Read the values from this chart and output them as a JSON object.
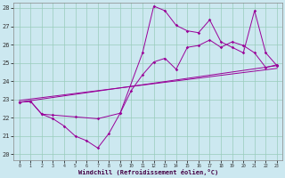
{
  "xlabel": "Windchill (Refroidissement éolien,°C)",
  "bg_color": "#cce8f0",
  "line_color": "#990099",
  "grid_color": "#99ccbb",
  "xmin": 0,
  "xmax": 23,
  "ymin": 20,
  "ymax": 28,
  "yticks": [
    20,
    21,
    22,
    23,
    24,
    25,
    26,
    27,
    28
  ],
  "xticks": [
    0,
    1,
    2,
    3,
    4,
    5,
    6,
    7,
    8,
    9,
    10,
    11,
    12,
    13,
    14,
    15,
    16,
    17,
    18,
    19,
    20,
    21,
    22,
    23
  ],
  "s1x": [
    0,
    1,
    2,
    3,
    4,
    5,
    6,
    7,
    8,
    9,
    10,
    11,
    12,
    13,
    14,
    15,
    16,
    17,
    18,
    19,
    20,
    21,
    22,
    23
  ],
  "s1y": [
    22.85,
    22.9,
    22.2,
    21.95,
    21.55,
    21.0,
    20.75,
    20.35,
    21.15,
    22.25,
    23.5,
    24.35,
    25.05,
    25.25,
    24.65,
    25.85,
    25.95,
    26.25,
    25.85,
    26.15,
    25.95,
    25.55,
    24.75,
    24.9
  ],
  "s2x": [
    0,
    1,
    2,
    3,
    5,
    7,
    9,
    11,
    12,
    13,
    14,
    15,
    16,
    17,
    18,
    19,
    20,
    21,
    22,
    23
  ],
  "s2y": [
    22.85,
    22.9,
    22.2,
    22.15,
    22.05,
    21.95,
    22.25,
    25.55,
    28.1,
    27.85,
    27.05,
    26.75,
    26.65,
    27.35,
    26.15,
    25.85,
    25.55,
    27.85,
    25.55,
    24.85
  ],
  "s3x": [
    0,
    23
  ],
  "s3y": [
    22.85,
    24.85
  ],
  "s4x": [
    0,
    23
  ],
  "s4y": [
    22.85,
    24.85
  ]
}
